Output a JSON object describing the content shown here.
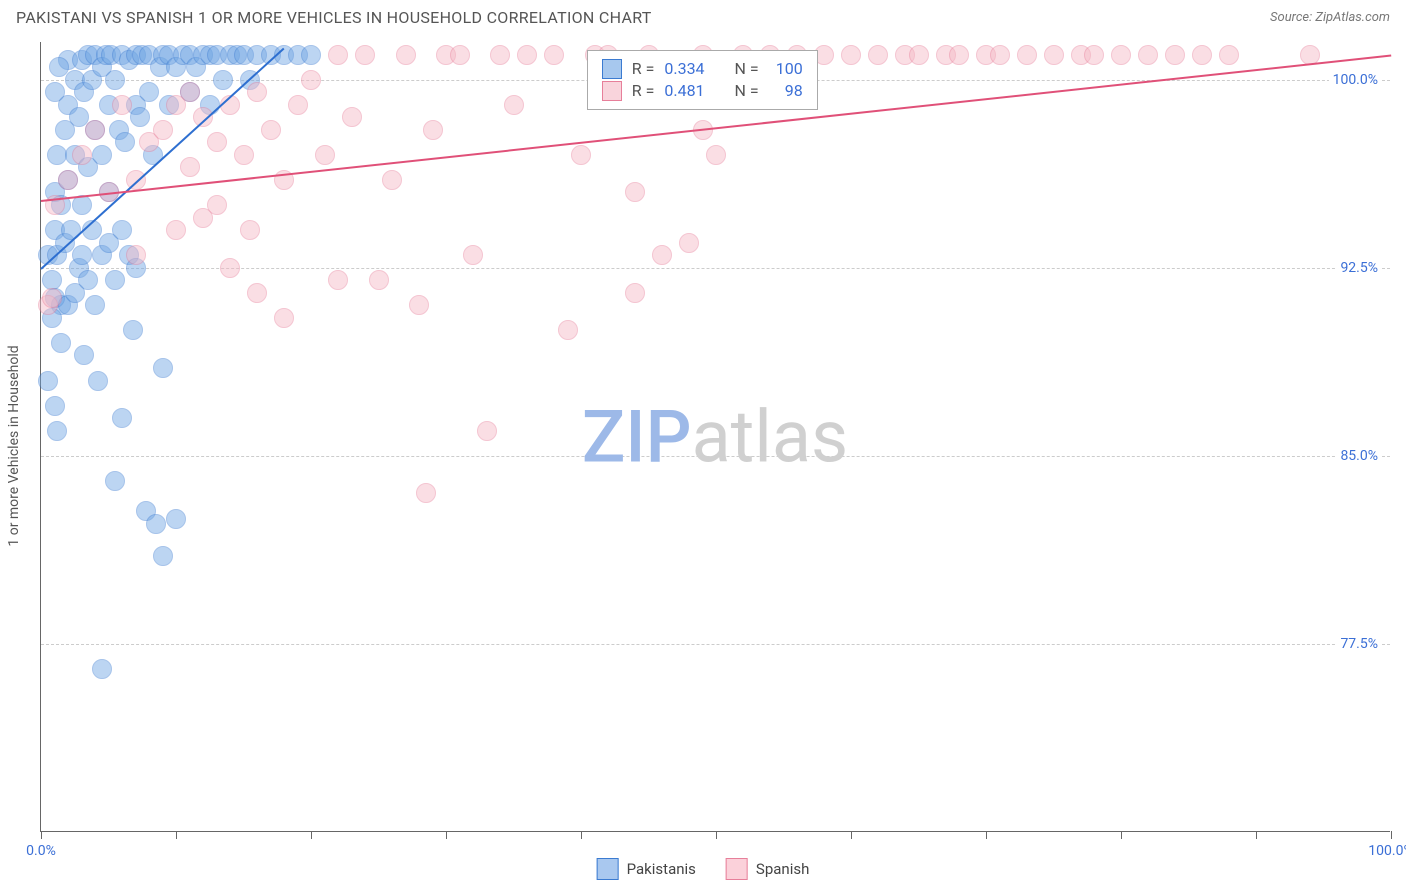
{
  "header": {
    "title": "PAKISTANI VS SPANISH 1 OR MORE VEHICLES IN HOUSEHOLD CORRELATION CHART",
    "source": "Source: ZipAtlas.com"
  },
  "watermark": {
    "part1": "ZIP",
    "part2": "atlas"
  },
  "chart": {
    "type": "scatter",
    "background_color": "#ffffff",
    "grid_color": "#cccccc",
    "axis_color": "#666666",
    "tick_label_color": "#3b6fd6",
    "ylabel": "1 or more Vehicles in Household",
    "ylabel_fontsize": 14,
    "ylabel_color": "#555555",
    "xlim": [
      0,
      100
    ],
    "ylim": [
      70,
      101.5
    ],
    "yticks": [
      77.5,
      85.0,
      92.5,
      100.0
    ],
    "ytick_labels": [
      "77.5%",
      "85.0%",
      "92.5%",
      "100.0%"
    ],
    "xticks_minor": [
      0,
      10,
      20,
      30,
      40,
      50,
      60,
      70,
      80,
      90,
      100
    ],
    "xtick_labels": [
      {
        "x": 0,
        "label": "0.0%"
      },
      {
        "x": 100,
        "label": "100.0%"
      }
    ],
    "marker_radius": 10,
    "marker_opacity": 0.45,
    "series": [
      {
        "name": "Pakistanis",
        "fill_color": "#6da4e3",
        "stroke_color": "#3b7bd1",
        "R": "0.334",
        "N": "100",
        "trend": {
          "x1": 0,
          "y1": 92.5,
          "x2": 18,
          "y2": 101.3,
          "color": "#2e6fd0",
          "width": 2
        },
        "points": [
          [
            0.5,
            93.0
          ],
          [
            0.8,
            92.0
          ],
          [
            1.0,
            94.0
          ],
          [
            1.0,
            95.5
          ],
          [
            1.2,
            93.0
          ],
          [
            1.2,
            97.0
          ],
          [
            1.5,
            91.0
          ],
          [
            1.5,
            95.0
          ],
          [
            1.8,
            93.5
          ],
          [
            1.8,
            98.0
          ],
          [
            2.0,
            96.0
          ],
          [
            2.0,
            99.0
          ],
          [
            2.0,
            100.8
          ],
          [
            2.2,
            94.0
          ],
          [
            2.5,
            97.0
          ],
          [
            2.5,
            100.0
          ],
          [
            2.8,
            92.5
          ],
          [
            2.8,
            98.5
          ],
          [
            3.0,
            100.8
          ],
          [
            3.0,
            95.0
          ],
          [
            3.2,
            89.0
          ],
          [
            3.2,
            99.5
          ],
          [
            3.5,
            101.0
          ],
          [
            3.5,
            96.5
          ],
          [
            3.8,
            94.0
          ],
          [
            3.8,
            100.0
          ],
          [
            4.0,
            98.0
          ],
          [
            4.0,
            101.0
          ],
          [
            4.2,
            88.0
          ],
          [
            4.5,
            100.5
          ],
          [
            4.5,
            97.0
          ],
          [
            4.8,
            101.0
          ],
          [
            5.0,
            99.0
          ],
          [
            5.0,
            95.5
          ],
          [
            5.2,
            101.0
          ],
          [
            5.5,
            100.0
          ],
          [
            5.5,
            84.0
          ],
          [
            5.8,
            98.0
          ],
          [
            6.0,
            101.0
          ],
          [
            6.0,
            86.5
          ],
          [
            6.2,
            97.5
          ],
          [
            6.5,
            100.8
          ],
          [
            6.8,
            90.0
          ],
          [
            7.0,
            101.0
          ],
          [
            7.0,
            99.0
          ],
          [
            7.3,
            98.5
          ],
          [
            7.5,
            101.0
          ],
          [
            7.8,
            82.8
          ],
          [
            8.0,
            99.5
          ],
          [
            8.0,
            101.0
          ],
          [
            8.3,
            97.0
          ],
          [
            8.5,
            82.3
          ],
          [
            8.8,
            100.5
          ],
          [
            9.0,
            101.0
          ],
          [
            9.0,
            88.5
          ],
          [
            9.5,
            101.0
          ],
          [
            9.5,
            99.0
          ],
          [
            10.0,
            100.5
          ],
          [
            10.0,
            82.5
          ],
          [
            10.5,
            101.0
          ],
          [
            11.0,
            99.5
          ],
          [
            11.0,
            101.0
          ],
          [
            11.5,
            100.5
          ],
          [
            12.0,
            101.0
          ],
          [
            12.5,
            99.0
          ],
          [
            12.5,
            101.0
          ],
          [
            13.0,
            101.0
          ],
          [
            13.5,
            100.0
          ],
          [
            14.0,
            101.0
          ],
          [
            14.5,
            101.0
          ],
          [
            15.0,
            101.0
          ],
          [
            15.5,
            100.0
          ],
          [
            16.0,
            101.0
          ],
          [
            17.0,
            101.0
          ],
          [
            18.0,
            101.0
          ],
          [
            19.0,
            101.0
          ],
          [
            20.0,
            101.0
          ],
          [
            0.5,
            88.0
          ],
          [
            0.8,
            90.5
          ],
          [
            1.0,
            91.3
          ],
          [
            1.5,
            89.5
          ],
          [
            1.0,
            87.0
          ],
          [
            1.2,
            86.0
          ],
          [
            2.0,
            91.0
          ],
          [
            2.5,
            91.5
          ],
          [
            3.0,
            93.0
          ],
          [
            3.5,
            92.0
          ],
          [
            4.0,
            91.0
          ],
          [
            4.5,
            93.0
          ],
          [
            5.0,
            93.5
          ],
          [
            5.5,
            92.0
          ],
          [
            6.0,
            94.0
          ],
          [
            6.5,
            93.0
          ],
          [
            7.0,
            92.5
          ],
          [
            1.0,
            99.5
          ],
          [
            1.3,
            100.5
          ],
          [
            4.5,
            76.5
          ],
          [
            9.0,
            81.0
          ]
        ]
      },
      {
        "name": "Spanish",
        "fill_color": "#f5b8c5",
        "stroke_color": "#e77f9a",
        "R": "0.481",
        "N": "98",
        "trend": {
          "x1": 0,
          "y1": 95.2,
          "x2": 100,
          "y2": 101.0,
          "color": "#e05078",
          "width": 2
        },
        "points": [
          [
            0.5,
            91.0
          ],
          [
            1.0,
            95.0
          ],
          [
            2.0,
            96.0
          ],
          [
            3.0,
            97.0
          ],
          [
            4.0,
            98.0
          ],
          [
            5.0,
            95.5
          ],
          [
            6.0,
            99.0
          ],
          [
            7.0,
            96.0
          ],
          [
            8.0,
            97.5
          ],
          [
            9.0,
            98.0
          ],
          [
            10.0,
            99.0
          ],
          [
            11.0,
            96.5
          ],
          [
            12.0,
            98.5
          ],
          [
            13.0,
            95.0
          ],
          [
            14.0,
            99.0
          ],
          [
            15.0,
            97.0
          ],
          [
            15.5,
            94.0
          ],
          [
            16.0,
            99.5
          ],
          [
            17.0,
            98.0
          ],
          [
            18.0,
            96.0
          ],
          [
            19.0,
            99.0
          ],
          [
            20.0,
            100.0
          ],
          [
            21.0,
            97.0
          ],
          [
            22.0,
            101.0
          ],
          [
            23.0,
            98.5
          ],
          [
            24.0,
            101.0
          ],
          [
            25.0,
            92.0
          ],
          [
            26.0,
            96.0
          ],
          [
            27.0,
            101.0
          ],
          [
            28.0,
            91.0
          ],
          [
            28.5,
            83.5
          ],
          [
            29.0,
            98.0
          ],
          [
            30.0,
            101.0
          ],
          [
            31.0,
            101.0
          ],
          [
            32.0,
            93.0
          ],
          [
            33.0,
            86.0
          ],
          [
            34.0,
            101.0
          ],
          [
            35.0,
            99.0
          ],
          [
            36.0,
            101.0
          ],
          [
            38.0,
            101.0
          ],
          [
            39.0,
            90.0
          ],
          [
            40.0,
            97.0
          ],
          [
            41.0,
            101.0
          ],
          [
            42.0,
            101.0
          ],
          [
            44.0,
            91.5
          ],
          [
            45.0,
            101.0
          ],
          [
            46.0,
            93.0
          ],
          [
            48.0,
            93.5
          ],
          [
            49.0,
            101.0
          ],
          [
            50.0,
            97.0
          ],
          [
            52.0,
            101.0
          ],
          [
            54.0,
            101.0
          ],
          [
            56.0,
            101.0
          ],
          [
            58.0,
            101.0
          ],
          [
            60.0,
            101.0
          ],
          [
            62.0,
            101.0
          ],
          [
            64.0,
            101.0
          ],
          [
            65.0,
            101.0
          ],
          [
            67.0,
            101.0
          ],
          [
            68.0,
            101.0
          ],
          [
            70.0,
            101.0
          ],
          [
            71.0,
            101.0
          ],
          [
            73.0,
            101.0
          ],
          [
            75.0,
            101.0
          ],
          [
            77.0,
            101.0
          ],
          [
            78.0,
            101.0
          ],
          [
            80.0,
            101.0
          ],
          [
            82.0,
            101.0
          ],
          [
            84.0,
            101.0
          ],
          [
            86.0,
            101.0
          ],
          [
            88.0,
            101.0
          ],
          [
            94.0,
            101.0
          ],
          [
            14.0,
            92.5
          ],
          [
            18.0,
            90.5
          ],
          [
            22.0,
            92.0
          ],
          [
            12.0,
            94.5
          ],
          [
            16.0,
            91.5
          ],
          [
            44.0,
            95.5
          ],
          [
            49.0,
            98.0
          ],
          [
            0.8,
            91.3
          ],
          [
            10.0,
            94.0
          ],
          [
            7.0,
            93.0
          ],
          [
            13.0,
            97.5
          ],
          [
            11.0,
            99.5
          ]
        ]
      }
    ],
    "legend_box": {
      "left_pct": 40.5,
      "top_pct": 1.0,
      "label_R": "R =",
      "label_N": "N =",
      "value_color": "#3b6fd6",
      "text_color": "#555555"
    },
    "bottom_legend": [
      {
        "swatch_fill": "#a9c8ef",
        "swatch_border": "#3b7bd1",
        "label": "Pakistanis"
      },
      {
        "swatch_fill": "#fbd1da",
        "swatch_border": "#e77f9a",
        "label": "Spanish"
      }
    ]
  }
}
